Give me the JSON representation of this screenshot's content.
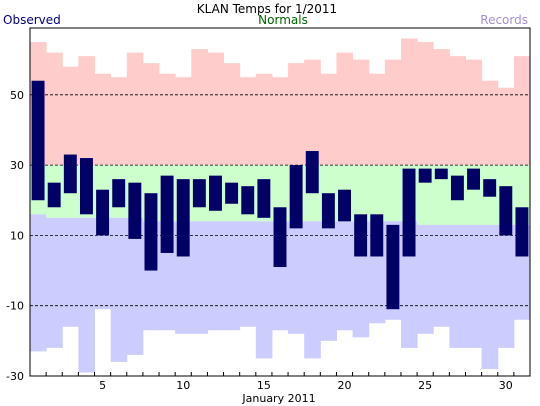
{
  "chart_data": {
    "type": "bar",
    "title": "KLAN Temps for 1/2011",
    "xlabel": "January 2011",
    "ylabel": "",
    "legend": {
      "observed": "Observed",
      "normals": "Normals",
      "records": "Records"
    },
    "colors": {
      "observed": "#000066",
      "observed_label": "#000080",
      "normals_label": "#006400",
      "records_label": "#a58fd0",
      "record_high_band": "#ffcccc",
      "normal_band": "#ccffcc",
      "record_low_band": "#ccccff"
    },
    "ylim": [
      -30,
      69
    ],
    "y_ticks": [
      -30,
      -10,
      10,
      30,
      50
    ],
    "y_tick_labels": [
      "-30",
      "-10",
      "10",
      "30",
      "50"
    ],
    "dashed_gridlines": [
      -10,
      10,
      30,
      50
    ],
    "x_ticks": [
      5,
      10,
      15,
      20,
      25,
      30
    ],
    "x_tick_labels": [
      "5",
      "10",
      "15",
      "20",
      "25",
      "30"
    ],
    "days": [
      1,
      2,
      3,
      4,
      5,
      6,
      7,
      8,
      9,
      10,
      11,
      12,
      13,
      14,
      15,
      16,
      17,
      18,
      19,
      20,
      21,
      22,
      23,
      24,
      25,
      26,
      27,
      28,
      29,
      30,
      31
    ],
    "series": [
      {
        "name": "Observed",
        "high": [
          54,
          25,
          33,
          32,
          23,
          26,
          25,
          22,
          27,
          26,
          26,
          27,
          25,
          24,
          26,
          18,
          30,
          34,
          22,
          23,
          16,
          16,
          13,
          29,
          29,
          29,
          27,
          29,
          26,
          24,
          18
        ],
        "low": [
          20,
          18,
          22,
          16,
          10,
          18,
          9,
          0,
          5,
          4,
          18,
          17,
          19,
          16,
          15,
          1,
          12,
          22,
          12,
          14,
          4,
          4,
          -11,
          4,
          25,
          26,
          20,
          23,
          21,
          10,
          4
        ]
      },
      {
        "name": "Normals",
        "high": [
          30,
          30,
          30,
          30,
          30,
          30,
          30,
          30,
          30,
          30,
          30,
          30,
          30,
          30,
          30,
          30,
          30,
          30,
          30,
          30,
          30,
          30,
          30,
          30,
          30,
          30,
          30,
          30,
          30,
          30,
          30
        ],
        "low": [
          16,
          15,
          15,
          15,
          15,
          15,
          15,
          14,
          14,
          14,
          14,
          14,
          14,
          14,
          14,
          14,
          14,
          14,
          14,
          14,
          14,
          14,
          14,
          14,
          13,
          13,
          13,
          13,
          13,
          13,
          13
        ]
      },
      {
        "name": "Records",
        "high": [
          65,
          62,
          58,
          61,
          56,
          55,
          62,
          59,
          56,
          55,
          63,
          62,
          59,
          55,
          56,
          55,
          59,
          60,
          56,
          62,
          60,
          56,
          60,
          66,
          65,
          63,
          61,
          60,
          54,
          52,
          61
        ],
        "low": [
          -23,
          -22,
          -16,
          -29,
          -11,
          -26,
          -24,
          -17,
          -17,
          -18,
          -18,
          -17,
          -17,
          -16,
          -25,
          -17,
          -18,
          -25,
          -20,
          -17,
          -19,
          -15,
          -14,
          -22,
          -18,
          -16,
          -22,
          -22,
          -28,
          -22,
          -14
        ]
      }
    ]
  }
}
